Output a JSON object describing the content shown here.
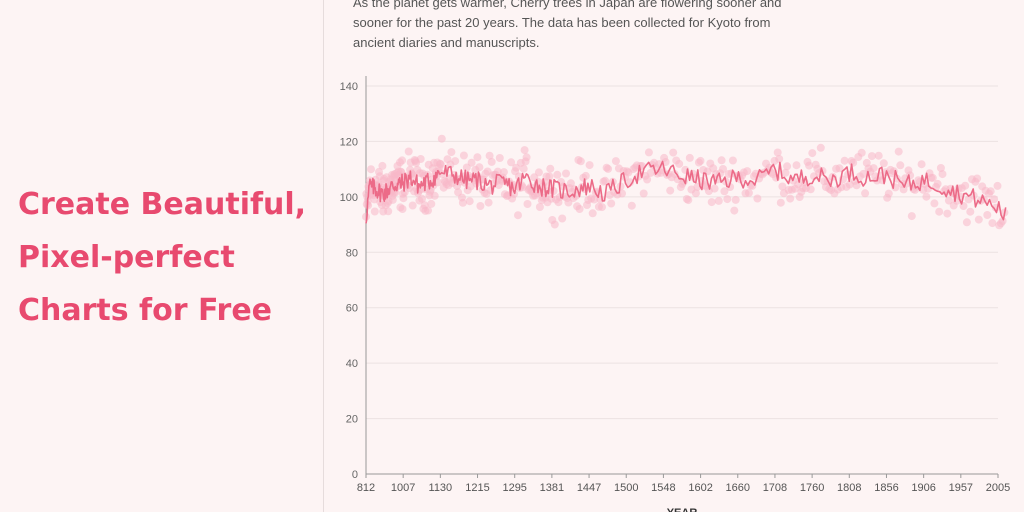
{
  "headline": {
    "lines": [
      "Create Beautiful,",
      "Pixel-perfect",
      "Charts for Free"
    ]
  },
  "colors": {
    "accent": "#e84a6f",
    "line": "#ec6b88",
    "dots": "#f7b8c8",
    "background": "#fdf4f4"
  },
  "chart_data": {
    "type": "scatter",
    "description": "As the planet gets warmer, Cherry trees in Japan are flowering sooner and sooner for the past 20 years. The data has been collected for Kyoto from ancient diaries and manuscripts.",
    "xlabel": "YEAR",
    "ylabel": "",
    "ylim": [
      0,
      140
    ],
    "yticks": [
      0,
      20,
      40,
      60,
      80,
      100,
      120,
      140
    ],
    "xlim": [
      812,
      2015
    ],
    "xticks": [
      812,
      1007,
      1130,
      1215,
      1295,
      1381,
      1447,
      1500,
      1548,
      1602,
      1660,
      1708,
      1760,
      1808,
      1856,
      1906,
      1957,
      2005
    ],
    "grid": true,
    "series": [
      {
        "kind": "points",
        "values_range": [
          85,
          124
        ]
      },
      {
        "kind": "moving-average-line",
        "x": [
          812,
          830,
          860,
          900,
          950,
          1007,
          1030,
          1060,
          1100,
          1130,
          1160,
          1190,
          1215,
          1240,
          1270,
          1295,
          1320,
          1350,
          1381,
          1410,
          1447,
          1470,
          1500,
          1520,
          1548,
          1570,
          1602,
          1630,
          1660,
          1685,
          1708,
          1735,
          1760,
          1785,
          1808,
          1830,
          1856,
          1880,
          1906,
          1930,
          1957,
          1980,
          2005,
          2015
        ],
        "y": [
          92,
          104,
          103,
          101,
          104,
          105,
          107,
          104,
          106,
          109,
          108,
          106,
          106,
          104,
          105,
          103,
          107,
          104,
          103,
          102,
          104,
          101,
          106,
          109,
          110,
          108,
          106,
          105,
          107,
          106,
          110,
          106,
          108,
          106,
          109,
          107,
          108,
          104,
          106,
          104,
          101,
          99,
          96,
          93
        ]
      }
    ]
  }
}
